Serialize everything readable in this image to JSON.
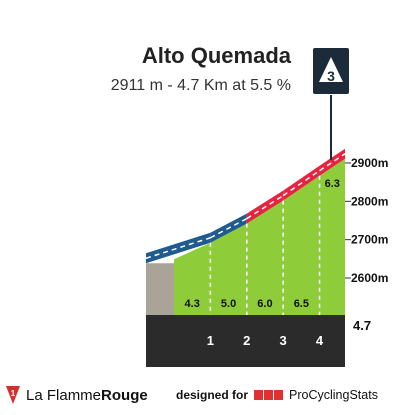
{
  "climb": {
    "name": "Alto Quemada",
    "summary": "2911 m - 4.7 Km at 5.5 %",
    "category": "3"
  },
  "chart_data": {
    "type": "area",
    "title": "Alto Quemada",
    "subtitle": "2911 m - 4.7 Km at 5.5 %",
    "x_unit": "km",
    "total_distance_label": "4.7",
    "xlim": [
      0,
      4.7
    ],
    "ylim": [
      2550,
      2950
    ],
    "y_ticks": [
      2600,
      2700,
      2800,
      2900
    ],
    "y_tick_labels": [
      "2600m",
      "2700m",
      "2800m",
      "2900m"
    ],
    "km_markers": [
      1,
      2,
      3,
      4
    ],
    "km_marker_labels": [
      "1",
      "2",
      "3",
      "4"
    ],
    "segments": [
      {
        "from_km": 0,
        "to_km": 1,
        "gradient": 4.3,
        "gradient_label": "4.3",
        "band_color": "#1f5b8f"
      },
      {
        "from_km": 1,
        "to_km": 2,
        "gradient": 5.0,
        "gradient_label": "5.0",
        "band_color": "#1f5b8f"
      },
      {
        "from_km": 2,
        "to_km": 3,
        "gradient": 6.0,
        "gradient_label": "6.0",
        "band_color": "#e8233f"
      },
      {
        "from_km": 3,
        "to_km": 4,
        "gradient": 6.5,
        "gradient_label": "6.5",
        "band_color": "#e8233f"
      },
      {
        "from_km": 4,
        "to_km": 4.7,
        "gradient": 6.3,
        "gradient_label": "6.3",
        "band_color": "#e8233f"
      }
    ],
    "finish_altitude": 2911,
    "grid": false
  },
  "colors": {
    "fill": "#8fcc3a",
    "start_block": "#a9a398",
    "base": "#2b2b2b",
    "marker": "#1c2b3a"
  },
  "footer": {
    "brand_regular": "La Flamme",
    "brand_bold": "Rouge",
    "designed_by": "designed for",
    "pcs_name": "ProCyclingStats"
  }
}
